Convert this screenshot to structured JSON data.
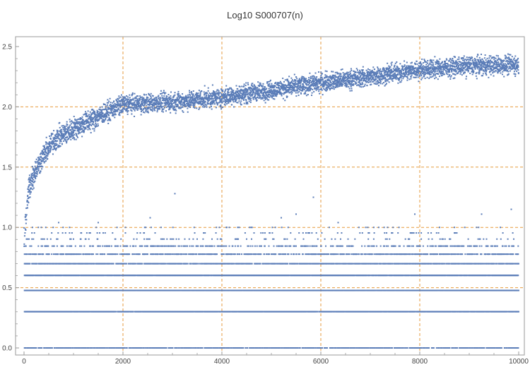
{
  "chart_data": {
    "type": "scatter",
    "title": "Log10 S000707(n)",
    "xlabel": "",
    "ylabel": "",
    "xlim": [
      0,
      10000
    ],
    "ylim": [
      0,
      2.55
    ],
    "x_ticks": [
      0,
      2000,
      4000,
      6000,
      8000,
      10000
    ],
    "x_tick_labels": [
      "0",
      "2000",
      "4000",
      "6000",
      "8000",
      "10000"
    ],
    "y_ticks": [
      0.0,
      0.5,
      1.0,
      1.5,
      2.0,
      2.5
    ],
    "y_tick_labels": [
      "0.0",
      "0.5",
      "1.0",
      "1.5",
      "2.0",
      "2.5"
    ],
    "grid": true,
    "grid_x_at": [
      2000,
      4000,
      6000,
      8000
    ],
    "grid_y_at": [
      0.5,
      1.0,
      1.5,
      2.0
    ],
    "legend": "none",
    "colors": {
      "points": "#5b7db8",
      "grid": "#e69a3c",
      "axis": "#999999"
    },
    "series": [
      {
        "description_points": "main trend band",
        "trend_x": [
          0,
          100,
          200,
          400,
          600,
          1000,
          1500,
          2000,
          3000,
          4000,
          5000,
          6000,
          7000,
          8000,
          9000,
          10000
        ],
        "trend_y": [
          0.9,
          1.33,
          1.45,
          1.6,
          1.72,
          1.82,
          1.92,
          2.02,
          2.04,
          2.08,
          2.14,
          2.2,
          2.25,
          2.31,
          2.34,
          2.35
        ],
        "levels": [
          0.0,
          0.301,
          0.477,
          0.602,
          0.699,
          0.778,
          0.845,
          0.903,
          0.954,
          1.0
        ],
        "outliers": [
          {
            "x": 3050,
            "y": 1.28
          },
          {
            "x": 5850,
            "y": 1.25
          },
          {
            "x": 5500,
            "y": 1.11
          },
          {
            "x": 5200,
            "y": 1.08
          },
          {
            "x": 9250,
            "y": 1.11
          },
          {
            "x": 9850,
            "y": 1.15
          },
          {
            "x": 7900,
            "y": 1.11
          },
          {
            "x": 2550,
            "y": 1.08
          },
          {
            "x": 700,
            "y": 1.04
          },
          {
            "x": 1500,
            "y": 1.04
          },
          {
            "x": 6350,
            "y": 1.04
          }
        ]
      }
    ]
  }
}
